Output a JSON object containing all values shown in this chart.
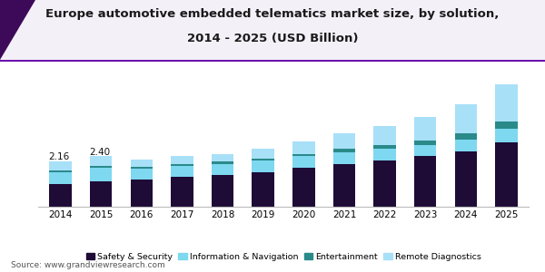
{
  "years": [
    "2014",
    "2015",
    "2016",
    "2017",
    "2018",
    "2019",
    "2020",
    "2021",
    "2022",
    "2023",
    "2024",
    "2025"
  ],
  "safety_security": [
    1.1,
    1.22,
    1.3,
    1.42,
    1.52,
    1.65,
    1.85,
    2.05,
    2.22,
    2.4,
    2.62,
    3.05
  ],
  "information_navigation": [
    0.55,
    0.62,
    0.52,
    0.52,
    0.52,
    0.55,
    0.55,
    0.55,
    0.55,
    0.55,
    0.58,
    0.65
  ],
  "entertainment": [
    0.08,
    0.1,
    0.09,
    0.1,
    0.1,
    0.1,
    0.12,
    0.15,
    0.18,
    0.22,
    0.28,
    0.38
  ],
  "remote_diagnostics": [
    0.43,
    0.46,
    0.35,
    0.36,
    0.38,
    0.45,
    0.6,
    0.75,
    0.9,
    1.1,
    1.42,
    1.77
  ],
  "annotations": [
    {
      "year_idx": 0,
      "text": "2.16"
    },
    {
      "year_idx": 1,
      "text": "2.40"
    }
  ],
  "colors": {
    "safety_security": "#1e0b36",
    "information_navigation": "#7dd8f0",
    "entertainment": "#2a8a8a",
    "remote_diagnostics": "#a8e0f8"
  },
  "title_line1": "Europe automotive embedded telematics market size, by solution,",
  "title_line2": "2014 - 2025 (USD Billion)",
  "title_fontsize": 9.5,
  "legend_labels": [
    "Safety & Security",
    "Information & Navigation",
    "Entertainment",
    "Remote Diagnostics"
  ],
  "source_text": "Source: www.grandviewresearch.com",
  "ylim": [
    0,
    7.0
  ],
  "background_color": "#ffffff",
  "header_bg": "#ffffff",
  "header_line_color": "#6a0dad",
  "accent_color1": "#4a0a6a",
  "accent_color2": "#7030a0"
}
